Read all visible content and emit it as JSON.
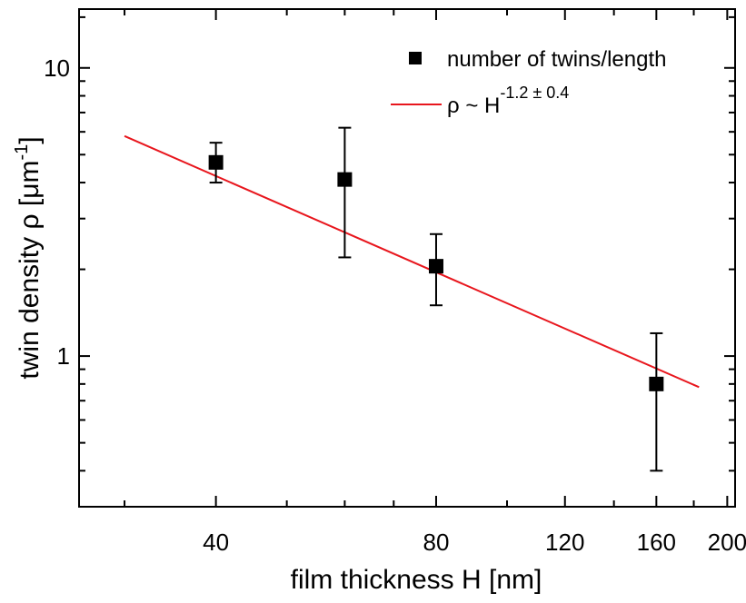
{
  "chart_data": {
    "type": "scatter",
    "xlabel": "film thickness H [nm]",
    "ylabel": "twin density ρ [μm",
    "ylabel_sup": "-1",
    "ylabel_tail": "]",
    "x_scale": "log",
    "y_scale": "log",
    "xlim": [
      26,
      205
    ],
    "ylim": [
      0.3,
      16
    ],
    "x_tick_labels": [
      "40",
      "80",
      "120",
      "160",
      "200"
    ],
    "x_ticks": [
      40,
      80,
      120,
      160,
      200
    ],
    "y_tick_labels": [
      "1",
      "10"
    ],
    "y_ticks": [
      1,
      10
    ],
    "series": [
      {
        "name": "number of twins/length",
        "marker": "square",
        "color": "#000000",
        "x": [
          40,
          60,
          80,
          160
        ],
        "y": [
          4.7,
          4.1,
          2.05,
          0.8
        ],
        "err_low": [
          0.7,
          1.9,
          0.55,
          0.4
        ],
        "err_high": [
          0.8,
          2.1,
          0.6,
          0.4
        ]
      },
      {
        "name": "ρ ~ H",
        "name_sup": "-1.2 ± 0.4",
        "type": "fit-line",
        "color": "#e8161d",
        "x": [
          30,
          183
        ],
        "y": [
          5.8,
          0.78
        ]
      }
    ],
    "legend_position": "top-right",
    "grid": false
  }
}
